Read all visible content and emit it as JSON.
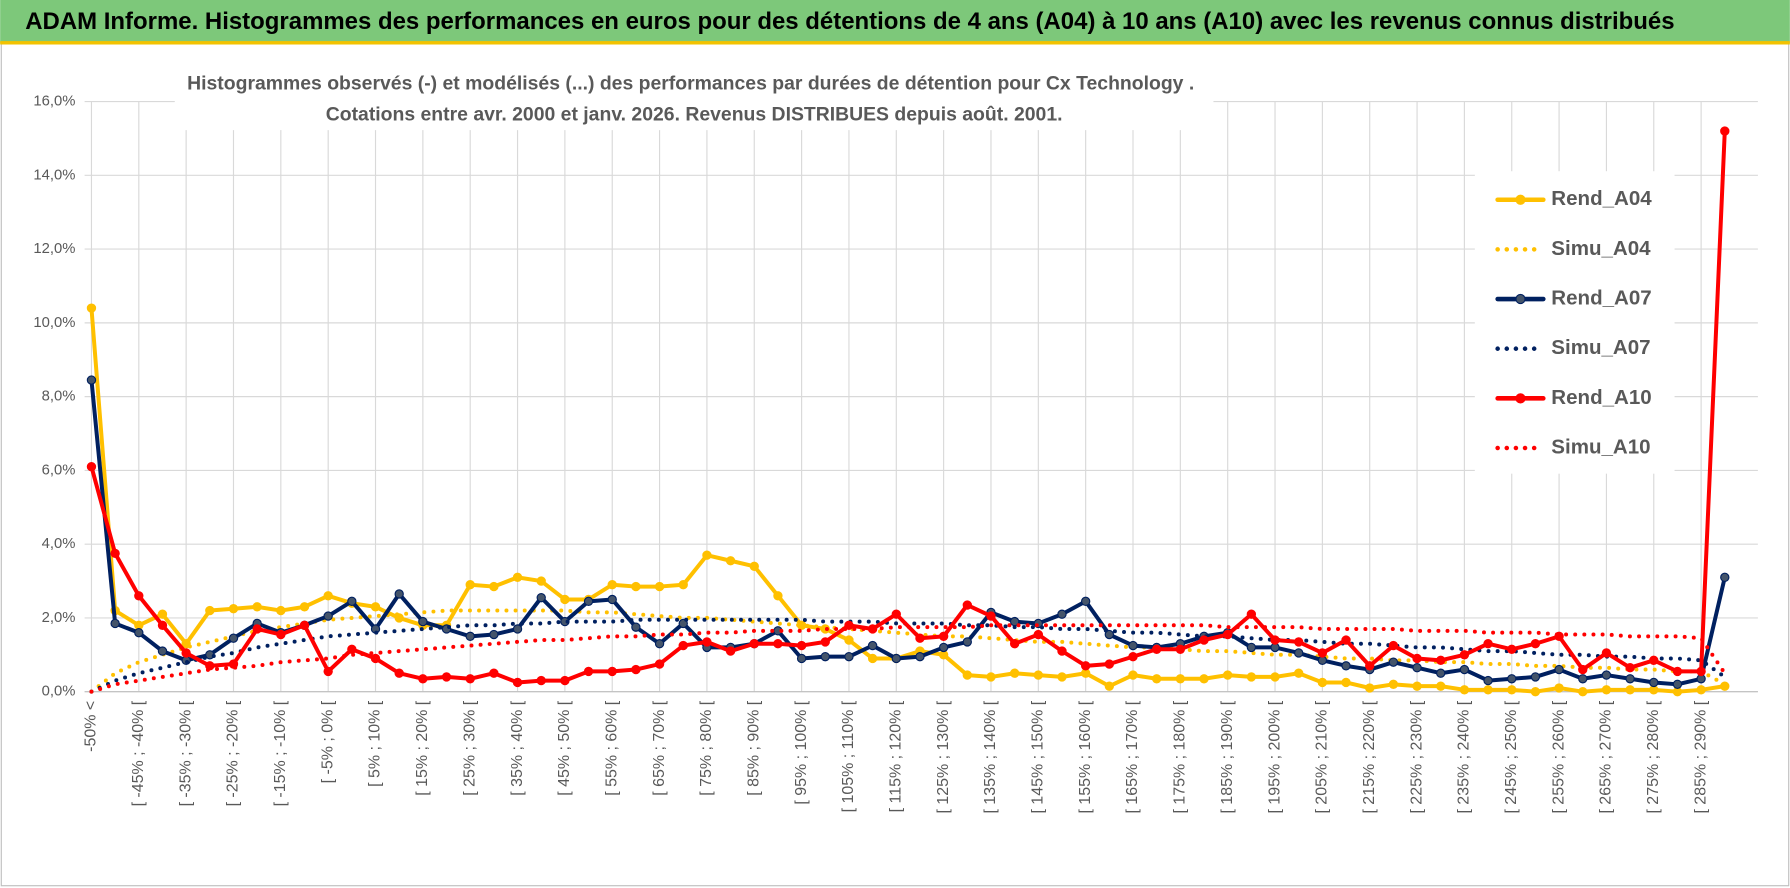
{
  "header": "ADAM Informe. Histogrammes des performances en euros pour des détentions de 4 ans (A04) à 10 ans (A10) avec les revenus connus distribués",
  "chart_data": {
    "type": "line",
    "title": [
      "Histogrammes observés (-) et modélisés (...) des performances par durées de détention pour Cx Technology .",
      "Cotations entre avr. 2000 et janv. 2026. Revenus DISTRIBUES depuis août. 2001."
    ],
    "categories": [
      "-50% <",
      null,
      "[ -45% ; -40% [",
      null,
      "[ -35% ; -30% [",
      null,
      "[ -25% ; -20% [",
      null,
      "[ -15% ; -10% [",
      null,
      "[ -5% ; 0% [",
      null,
      "[ 5% ; 10% [",
      null,
      "[ 15% ; 20% [",
      null,
      "[ 25% ; 30% [",
      null,
      "[ 35% ; 40% [",
      null,
      "[ 45% ; 50% [",
      null,
      "[ 55% ; 60% [",
      null,
      "[ 65% ; 70% [",
      null,
      "[ 75% ; 80% [",
      null,
      "[ 85% ; 90% [",
      null,
      "[ 95% ; 100% [",
      null,
      "[ 105% ; 110% [",
      null,
      "[ 115% ; 120% [",
      null,
      "[ 125% ; 130% [",
      null,
      "[ 135% ; 140% [",
      null,
      "[ 145% ; 150% [",
      null,
      "[ 155% ; 160% [",
      null,
      "[ 165% ; 170% [",
      null,
      "[ 175% ; 180% [",
      null,
      "[ 185% ; 190% [",
      null,
      "[ 195% ; 200% [",
      null,
      "[ 205% ; 210% [",
      null,
      "[ 215% ; 220% [",
      null,
      "[ 225% ; 230% [",
      null,
      "[ 235% ; 240% [",
      null,
      "[ 245% ; 250% [",
      null,
      "[ 255% ; 260% [",
      null,
      "[ 265% ; 270% [",
      null,
      "[ 275% ; 280% [",
      null,
      "[ 285% ; 290% [",
      null
    ],
    "series": [
      {
        "name": "Rend_A04",
        "color": "#ffc000",
        "style": "solid",
        "values": [
          10.4,
          2.2,
          1.8,
          2.1,
          1.3,
          2.2,
          2.25,
          2.3,
          2.2,
          2.3,
          2.6,
          2.4,
          2.3,
          2.0,
          1.8,
          1.8,
          2.9,
          2.85,
          3.1,
          3.0,
          2.5,
          2.5,
          2.9,
          2.85,
          2.85,
          2.9,
          3.7,
          3.55,
          3.4,
          2.6,
          1.8,
          1.7,
          1.4,
          0.9,
          0.9,
          1.1,
          1.0,
          0.45,
          0.4,
          0.5,
          0.45,
          0.4,
          0.5,
          0.15,
          0.45,
          0.35,
          0.35,
          0.35,
          0.45,
          0.4,
          0.4,
          0.5,
          0.25,
          0.25,
          0.1,
          0.2,
          0.15,
          0.15,
          0.05,
          0.05,
          0.05,
          0.0,
          0.1,
          0.0,
          0.05,
          0.05,
          0.05,
          0.0,
          0.05,
          0.15
        ]
      },
      {
        "name": "Simu_A04",
        "color": "#ffc000",
        "style": "dotted",
        "values": [
          0,
          0.5,
          0.8,
          1.0,
          1.2,
          1.35,
          1.5,
          1.65,
          1.75,
          1.85,
          1.95,
          2.0,
          2.05,
          2.1,
          2.15,
          2.2,
          2.2,
          2.2,
          2.2,
          2.2,
          2.2,
          2.15,
          2.15,
          2.1,
          2.05,
          2.0,
          2.0,
          1.95,
          1.9,
          1.85,
          1.8,
          1.75,
          1.7,
          1.65,
          1.6,
          1.55,
          1.5,
          1.5,
          1.45,
          1.4,
          1.35,
          1.35,
          1.3,
          1.25,
          1.2,
          1.2,
          1.15,
          1.1,
          1.1,
          1.05,
          1.0,
          1.0,
          0.95,
          0.9,
          0.9,
          0.85,
          0.85,
          0.8,
          0.8,
          0.75,
          0.75,
          0.7,
          0.7,
          0.65,
          0.65,
          0.6,
          0.6,
          0.55,
          0.55,
          0.2
        ]
      },
      {
        "name": "Rend_A07",
        "color": "#002060",
        "marker_color": "#44546a",
        "style": "solid",
        "values": [
          8.45,
          1.85,
          1.6,
          1.1,
          0.85,
          1.0,
          1.45,
          1.85,
          1.6,
          1.8,
          2.05,
          2.45,
          1.7,
          2.65,
          1.9,
          1.7,
          1.5,
          1.55,
          1.7,
          2.55,
          1.9,
          2.45,
          2.5,
          1.75,
          1.3,
          1.85,
          1.2,
          1.2,
          1.3,
          1.65,
          0.9,
          0.95,
          0.95,
          1.25,
          0.9,
          0.95,
          1.2,
          1.35,
          2.15,
          1.9,
          1.85,
          2.1,
          2.45,
          1.55,
          1.25,
          1.2,
          1.3,
          1.5,
          1.6,
          1.2,
          1.2,
          1.05,
          0.85,
          0.7,
          0.6,
          0.8,
          0.65,
          0.5,
          0.6,
          0.3,
          0.35,
          0.4,
          0.6,
          0.35,
          0.45,
          0.35,
          0.25,
          0.2,
          0.35,
          3.1
        ]
      },
      {
        "name": "Simu_A07",
        "color": "#002060",
        "style": "dotted",
        "values": [
          0,
          0.3,
          0.5,
          0.65,
          0.8,
          0.95,
          1.05,
          1.2,
          1.3,
          1.4,
          1.5,
          1.55,
          1.6,
          1.65,
          1.7,
          1.75,
          1.8,
          1.8,
          1.85,
          1.85,
          1.9,
          1.9,
          1.9,
          1.95,
          1.95,
          1.95,
          1.95,
          1.95,
          1.95,
          1.95,
          1.95,
          1.9,
          1.9,
          1.9,
          1.85,
          1.85,
          1.85,
          1.8,
          1.8,
          1.75,
          1.75,
          1.7,
          1.7,
          1.65,
          1.6,
          1.6,
          1.55,
          1.5,
          1.5,
          1.45,
          1.4,
          1.4,
          1.35,
          1.3,
          1.3,
          1.25,
          1.2,
          1.2,
          1.15,
          1.1,
          1.1,
          1.05,
          1.0,
          1.0,
          0.95,
          0.95,
          0.9,
          0.9,
          0.85,
          0.4
        ]
      },
      {
        "name": "Rend_A10",
        "color": "#ff0000",
        "style": "solid",
        "values": [
          6.1,
          3.75,
          2.6,
          1.8,
          1.05,
          0.7,
          0.75,
          1.7,
          1.55,
          1.8,
          0.55,
          1.15,
          0.9,
          0.5,
          0.35,
          0.4,
          0.35,
          0.5,
          0.25,
          0.3,
          0.3,
          0.55,
          0.55,
          0.6,
          0.75,
          1.25,
          1.35,
          1.1,
          1.3,
          1.3,
          1.25,
          1.35,
          1.8,
          1.7,
          2.1,
          1.45,
          1.5,
          2.35,
          2.05,
          1.3,
          1.55,
          1.1,
          0.7,
          0.75,
          0.95,
          1.15,
          1.15,
          1.4,
          1.55,
          2.1,
          1.4,
          1.35,
          1.05,
          1.4,
          0.7,
          1.25,
          0.9,
          0.85,
          1.0,
          1.3,
          1.15,
          1.3,
          1.5,
          0.6,
          1.05,
          0.65,
          0.85,
          0.55,
          0.55,
          15.2
        ]
      },
      {
        "name": "Simu_A10",
        "color": "#ff0000",
        "style": "dotted",
        "values": [
          0,
          0.2,
          0.3,
          0.4,
          0.5,
          0.6,
          0.65,
          0.7,
          0.8,
          0.85,
          0.9,
          1.0,
          1.05,
          1.1,
          1.15,
          1.2,
          1.25,
          1.3,
          1.35,
          1.4,
          1.4,
          1.45,
          1.5,
          1.5,
          1.55,
          1.55,
          1.6,
          1.6,
          1.65,
          1.65,
          1.65,
          1.7,
          1.7,
          1.7,
          1.75,
          1.75,
          1.75,
          1.75,
          1.8,
          1.8,
          1.8,
          1.8,
          1.8,
          1.8,
          1.8,
          1.8,
          1.8,
          1.8,
          1.75,
          1.75,
          1.75,
          1.75,
          1.7,
          1.7,
          1.7,
          1.7,
          1.65,
          1.65,
          1.65,
          1.6,
          1.6,
          1.6,
          1.55,
          1.55,
          1.55,
          1.5,
          1.5,
          1.5,
          1.45,
          0.5
        ]
      }
    ],
    "ylim": [
      0,
      16
    ],
    "yticks": [
      {
        "value": 0,
        "label": "0,0%"
      },
      {
        "value": 2,
        "label": "2,0%"
      },
      {
        "value": 4,
        "label": "4,0%"
      },
      {
        "value": 6,
        "label": "6,0%"
      },
      {
        "value": 8,
        "label": "8,0%"
      },
      {
        "value": 10,
        "label": "10,0%"
      },
      {
        "value": 12,
        "label": "12,0%"
      },
      {
        "value": 14,
        "label": "14,0%"
      },
      {
        "value": 16,
        "label": "16,0%"
      }
    ],
    "grid": true,
    "legend": "right"
  }
}
